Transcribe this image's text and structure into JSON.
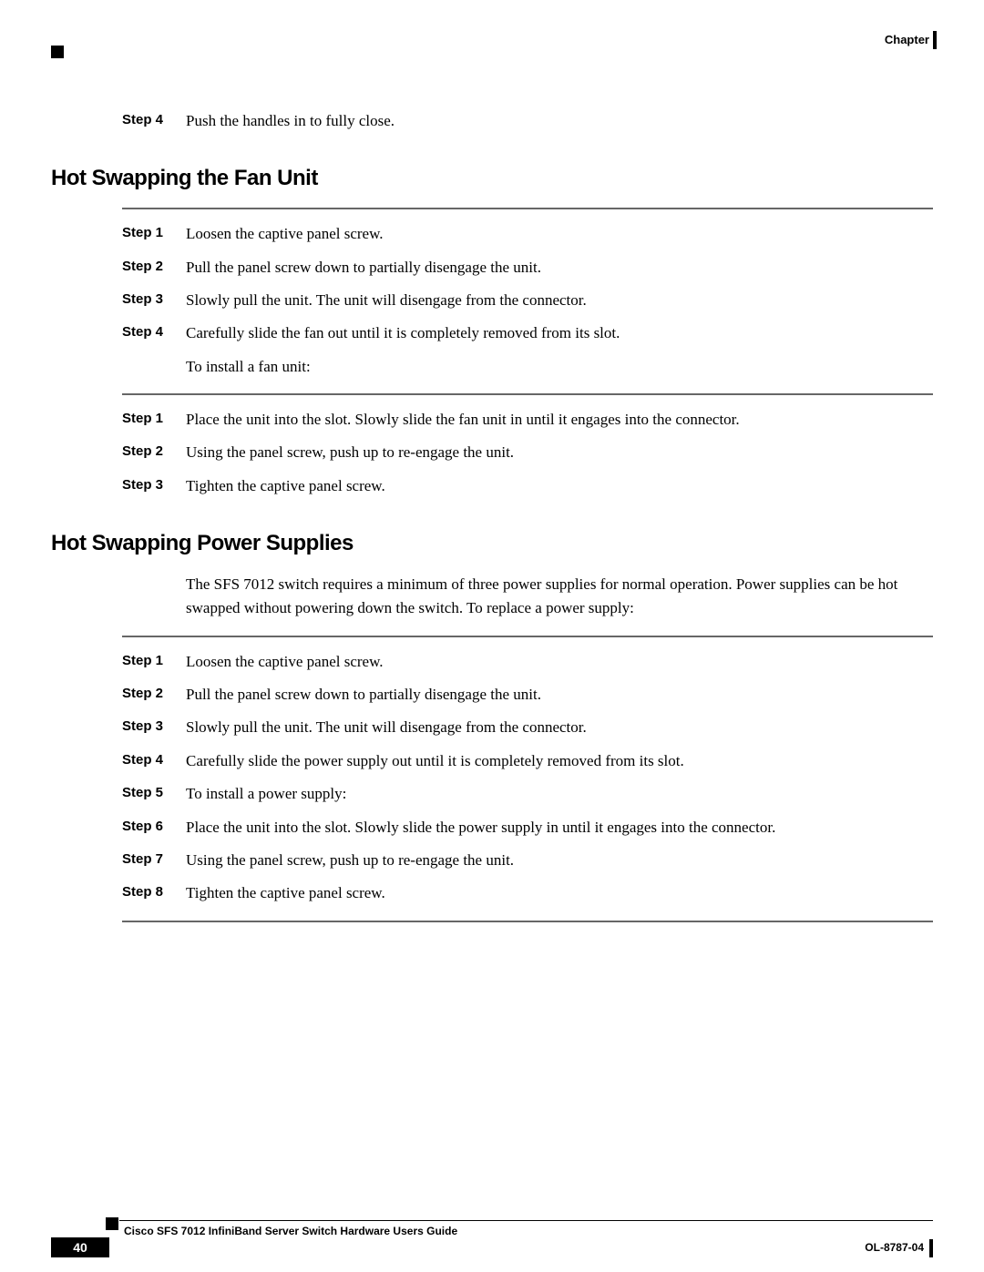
{
  "header": {
    "chapter": "Chapter"
  },
  "intro_step": {
    "label": "Step 4",
    "text": "Push the handles in to fully close."
  },
  "section1": {
    "title": "Hot Swapping the Fan Unit",
    "remove_steps": [
      {
        "label": "Step 1",
        "text": "Loosen the captive panel screw."
      },
      {
        "label": "Step 2",
        "text": "Pull the panel screw down to partially disengage the unit."
      },
      {
        "label": "Step 3",
        "text": "Slowly pull the unit. The unit will disengage from the connector."
      },
      {
        "label": "Step 4",
        "text": "Carefully slide the fan out until it is completely removed from its slot."
      }
    ],
    "sub_text": "To install a fan unit:",
    "install_steps": [
      {
        "label": "Step 1",
        "text": "Place the unit into the slot. Slowly slide the fan unit in until it engages into the connector."
      },
      {
        "label": "Step 2",
        "text": "Using the panel screw, push up to re-engage the unit."
      },
      {
        "label": "Step 3",
        "text": "Tighten the captive panel screw."
      }
    ]
  },
  "section2": {
    "title": "Hot Swapping Power Supplies",
    "intro": "The SFS 7012 switch requires a minimum of three power supplies for normal operation. Power supplies can be hot swapped without powering down the switch. To replace a power supply:",
    "steps": [
      {
        "label": "Step 1",
        "text": "Loosen the captive panel screw."
      },
      {
        "label": "Step 2",
        "text": "Pull the panel screw down to partially disengage the unit."
      },
      {
        "label": "Step 3",
        "text": "Slowly pull the unit. The unit will disengage from the connector."
      },
      {
        "label": "Step 4",
        "text": "Carefully slide the power supply out until it is completely removed from its slot."
      },
      {
        "label": "Step 5",
        "text": "To install a power supply:"
      },
      {
        "label": "Step 6",
        "text": "Place the unit into the slot. Slowly slide the power supply in until it engages into the connector."
      },
      {
        "label": "Step 7",
        "text": "Using the panel screw, push up to re-engage the unit."
      },
      {
        "label": "Step 8",
        "text": "Tighten the captive panel screw."
      }
    ]
  },
  "footer": {
    "title": "Cisco SFS 7012 InfiniBand Server Switch Hardware Users Guide",
    "page": "40",
    "doc_id": "OL-8787-04"
  }
}
